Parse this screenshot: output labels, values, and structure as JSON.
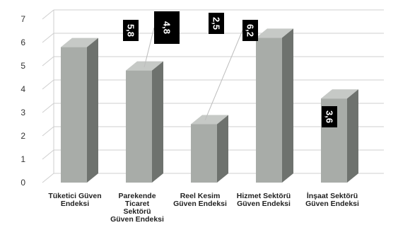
{
  "chart_data": {
    "type": "bar",
    "style": "3d-column",
    "categories": [
      [
        "Tüketici Güven",
        "Endeksi"
      ],
      [
        "Parekende",
        "Ticaret",
        "Sektörü",
        "Güven Endeksi"
      ],
      [
        "Reel Kesim",
        "Güven Endeksi"
      ],
      [
        "Hizmet Sektörü",
        "Güven Endeksi"
      ],
      [
        "İnşaat Sektörü",
        "Güven Endeksi"
      ]
    ],
    "values": [
      5.8,
      4.8,
      2.5,
      6.2,
      3.6
    ],
    "data_labels": [
      "5,8",
      "4,8",
      "2,5",
      "6,2",
      "3,6"
    ],
    "ylim": [
      0,
      7
    ],
    "yticks": [
      "0",
      "1",
      "2",
      "3",
      "4",
      "5",
      "6",
      "7"
    ],
    "grid": true,
    "legend": "none",
    "colors": {
      "bar_front": "#a8aca8",
      "bar_side": "#6e726e",
      "bar_top": "#c6c9c6",
      "label_bg": "#000000",
      "label_text": "#ffffff",
      "grid": "#cfcfcf"
    }
  }
}
